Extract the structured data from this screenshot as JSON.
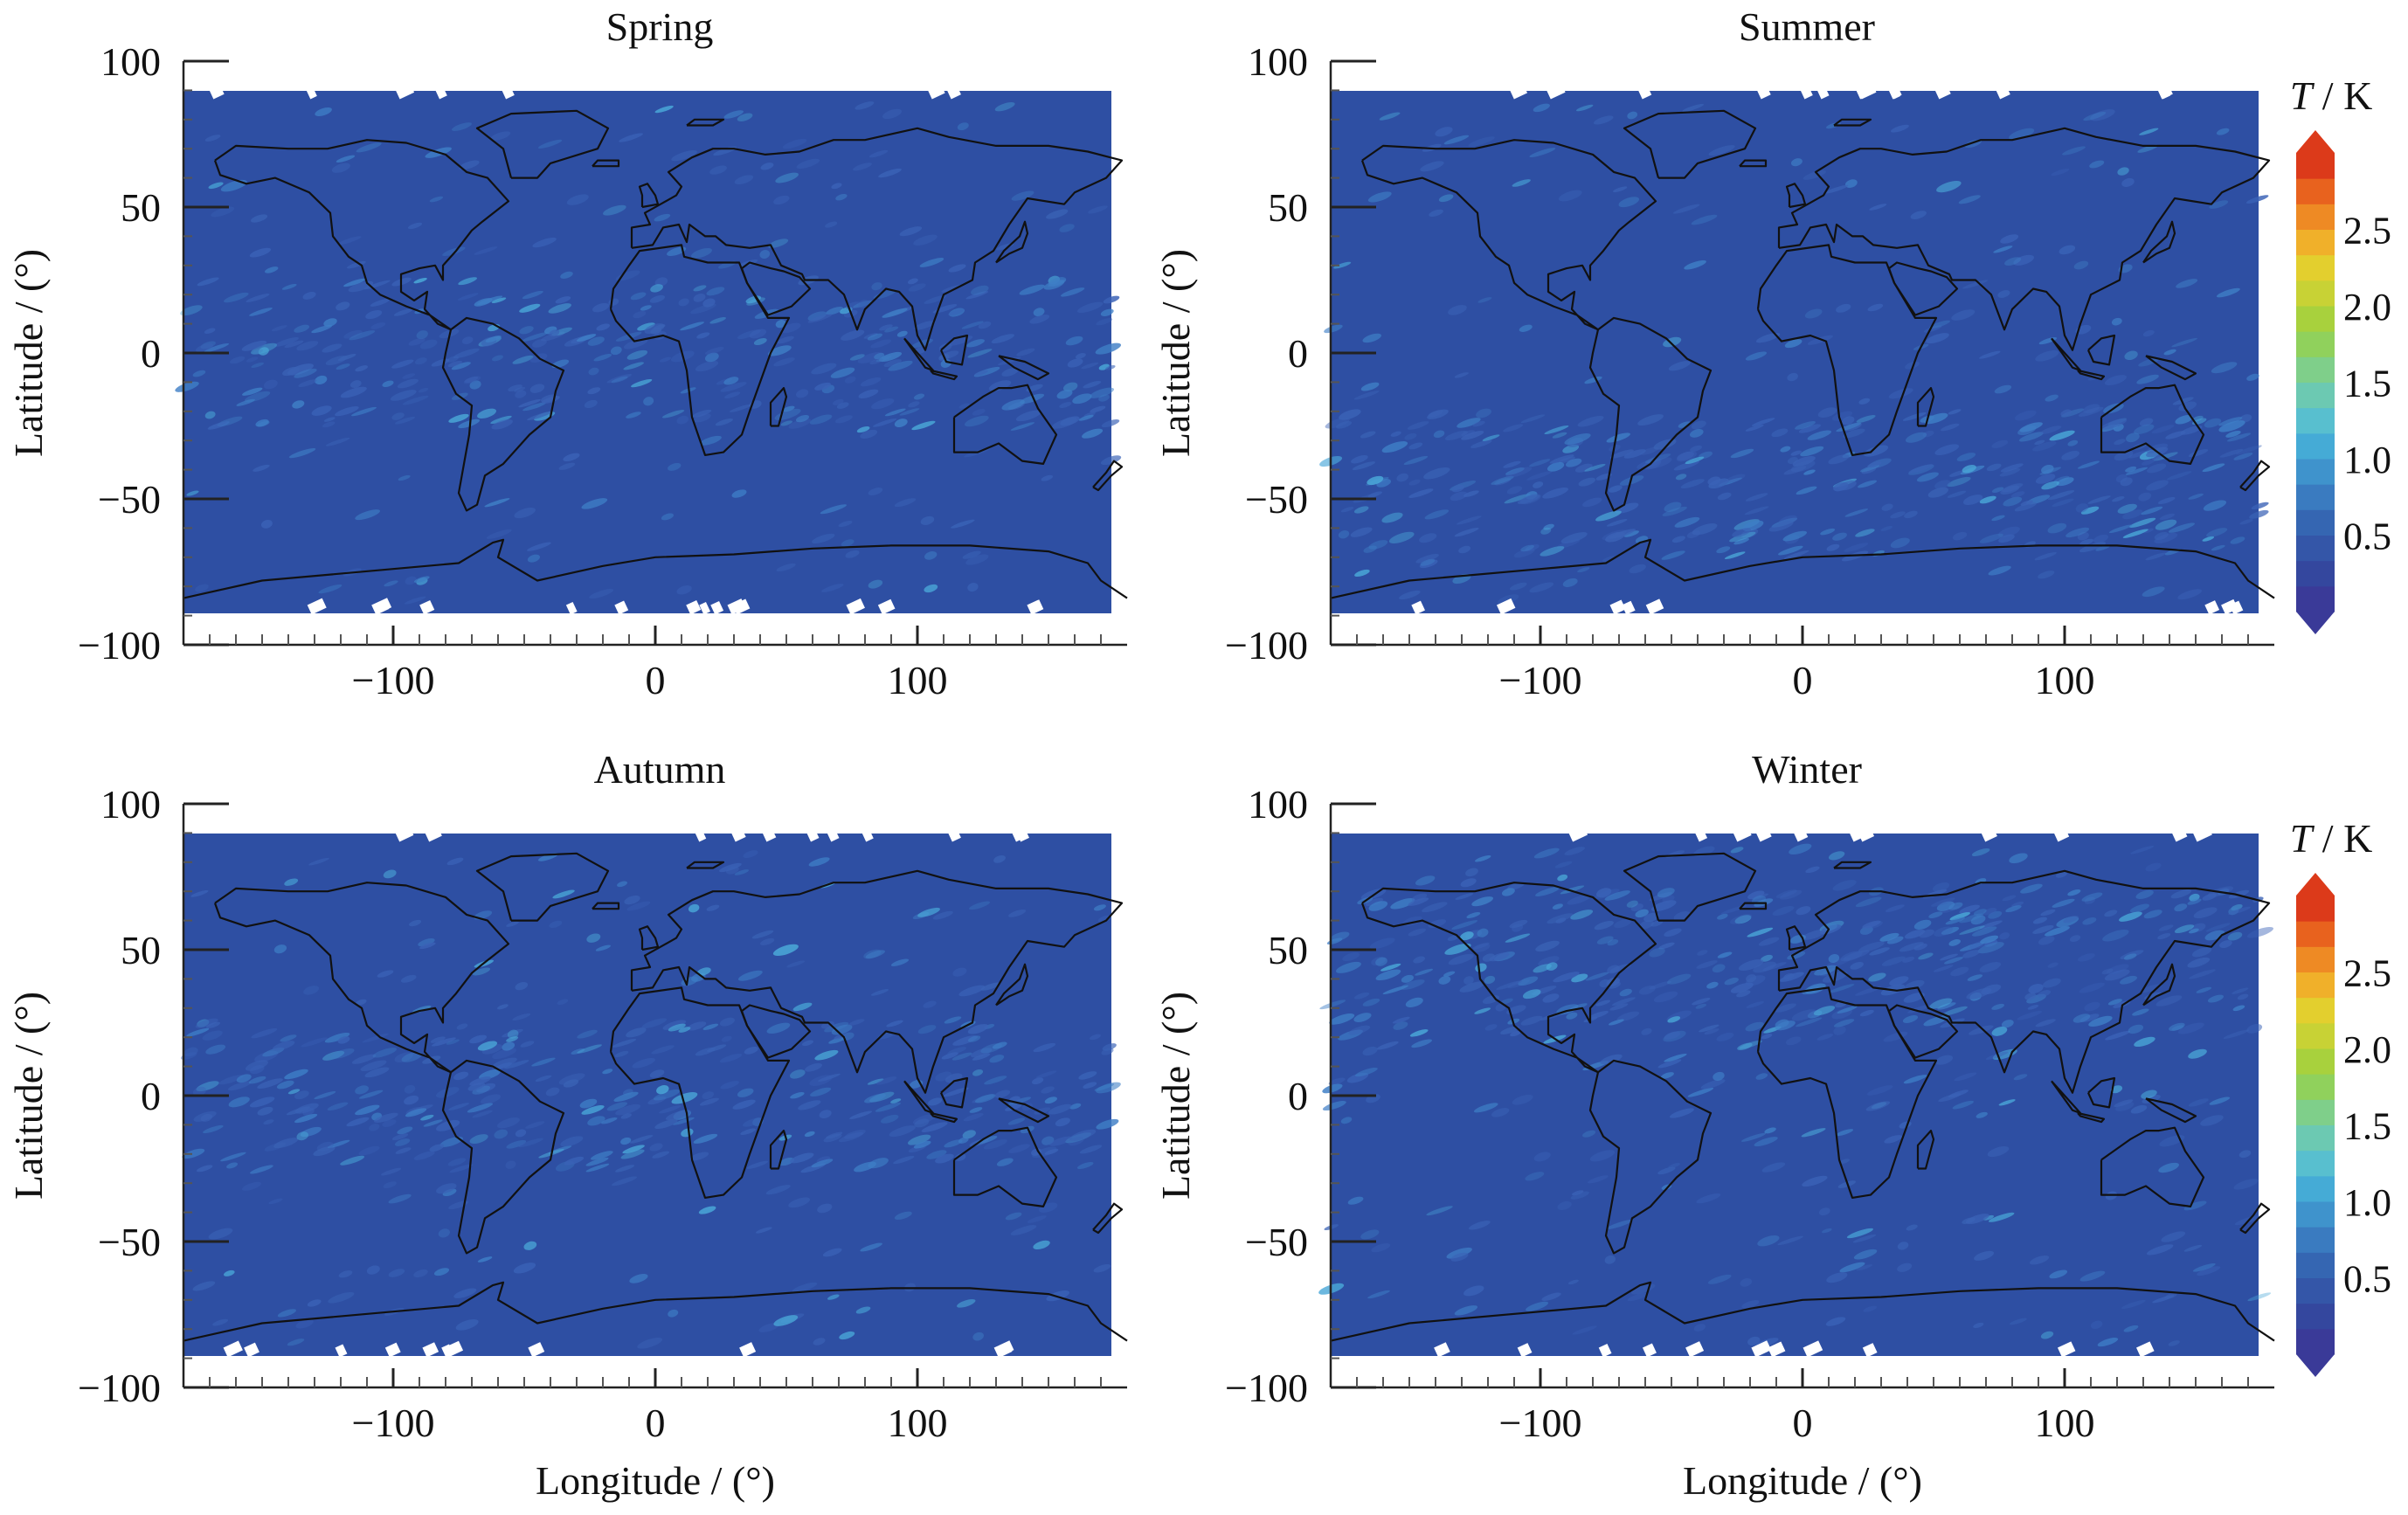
{
  "figure": {
    "colorbar_title_italic": "T",
    "colorbar_title_rest": " / K",
    "colorbar_ticks": [
      "0.5",
      "1.0",
      "1.5",
      "2.0",
      "2.5"
    ],
    "colorbar_range": [
      0,
      3
    ],
    "colors": {
      "background_field": "#2e4fa3",
      "low": "#33489c",
      "mid": "#4aa8d8",
      "high": "#d62a1c",
      "land_outline": "#111111"
    }
  },
  "chart_data": [
    {
      "type": "heatmap",
      "title": "Spring",
      "xlabel": "",
      "ylabel": "Latitude / (°)",
      "xlim": [
        -180,
        180
      ],
      "ylim": [
        -100,
        100
      ],
      "xticks": [
        "−100",
        "0",
        "100"
      ],
      "yticks": [
        "100",
        "50",
        "0",
        "−50",
        "−100"
      ],
      "typical_T_K": 0.45,
      "hotspot_band": "equatorial"
    },
    {
      "type": "heatmap",
      "title": "Summer",
      "xlabel": "",
      "ylabel": "Latitude / (°)",
      "xlim": [
        -180,
        180
      ],
      "ylim": [
        -100,
        100
      ],
      "xticks": [
        "−100",
        "0",
        "100"
      ],
      "yticks": [
        "100",
        "50",
        "0",
        "−50",
        "−100"
      ],
      "typical_T_K": 0.5,
      "hotspot_band": "southern mid-latitudes"
    },
    {
      "type": "heatmap",
      "title": "Autumn",
      "xlabel": "Longitude / (°)",
      "ylabel": "Latitude / (°)",
      "xlim": [
        -180,
        180
      ],
      "ylim": [
        -100,
        100
      ],
      "xticks": [
        "−100",
        "0",
        "100"
      ],
      "yticks": [
        "100",
        "50",
        "0",
        "−50",
        "−100"
      ],
      "typical_T_K": 0.45,
      "hotspot_band": "equatorial"
    },
    {
      "type": "heatmap",
      "title": "Winter",
      "xlabel": "Longitude / (°)",
      "ylabel": "Latitude / (°)",
      "xlim": [
        -180,
        180
      ],
      "ylim": [
        -100,
        100
      ],
      "xticks": [
        "−100",
        "0",
        "100"
      ],
      "yticks": [
        "100",
        "50",
        "0",
        "−50",
        "−100"
      ],
      "typical_T_K": 0.7,
      "hotspot_band": "northern mid-latitudes"
    }
  ]
}
